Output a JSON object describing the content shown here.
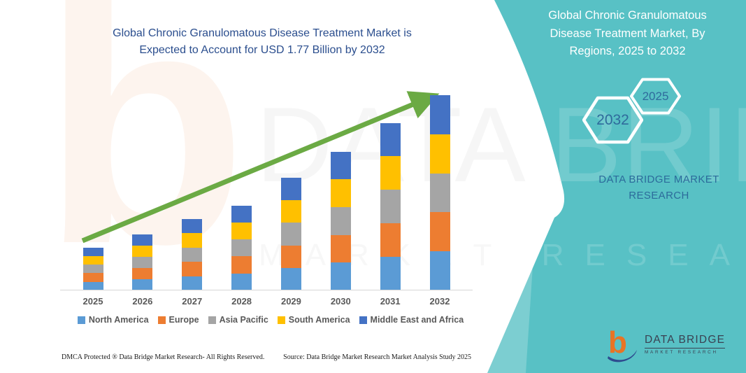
{
  "header": {
    "title": "Global Chronic Granulomatous Disease Treatment Market is\nExpected to Account for USD 1.77 Billion by 2032"
  },
  "side_panel": {
    "title": "Global Chronic Granulomatous\nDisease Treatment Market, By\nRegions, 2025 to 2032",
    "hexagons": [
      "2032",
      "2025"
    ],
    "brand_text": "DATA BRIDGE MARKET\nRESEARCH"
  },
  "chart_data": {
    "type": "bar",
    "stacked": true,
    "title": "Global Chronic Granulomatous Disease Treatment Market, By Regions, 2025 to 2032",
    "units": "USD Billion",
    "categories": [
      "2025",
      "2026",
      "2027",
      "2028",
      "2029",
      "2030",
      "2031",
      "2032"
    ],
    "totals": [
      0.39,
      0.51,
      0.65,
      0.77,
      1.02,
      1.26,
      1.52,
      1.77
    ],
    "series": [
      {
        "name": "North America",
        "color": "#5B9BD5",
        "values": [
          0.078,
          0.102,
          0.13,
          0.154,
          0.204,
          0.252,
          0.304,
          0.354
        ]
      },
      {
        "name": "Europe",
        "color": "#ED7D31",
        "values": [
          0.078,
          0.102,
          0.13,
          0.154,
          0.204,
          0.252,
          0.304,
          0.354
        ]
      },
      {
        "name": "Asia Pacific",
        "color": "#A5A5A5",
        "values": [
          0.078,
          0.102,
          0.13,
          0.154,
          0.204,
          0.252,
          0.304,
          0.354
        ]
      },
      {
        "name": "South America",
        "color": "#FFC000",
        "values": [
          0.078,
          0.102,
          0.13,
          0.154,
          0.204,
          0.252,
          0.304,
          0.354
        ]
      },
      {
        "name": "Middle East and Africa",
        "color": "#4472C4",
        "values": [
          0.078,
          0.102,
          0.13,
          0.154,
          0.204,
          0.252,
          0.304,
          0.354
        ]
      }
    ],
    "annotations": [
      "upward green trend arrow"
    ],
    "legend_position": "bottom",
    "grid": false,
    "y_axis_shown": false,
    "key_value": "USD 1.77 Billion by 2032"
  },
  "footer": {
    "left": "DMCA Protected ® Data Bridge Market Research-  All Rights Reserved.",
    "right": "Source: Data Bridge Market Research  Market Analysis Study 2025"
  },
  "logo": {
    "name": "DATA BRIDGE",
    "sub": "MARKET RESEARCH"
  },
  "watermark": {
    "logo_letter": "b",
    "big_text": "DATA BRIDGE",
    "sub_text": "MARKET RESEARCH"
  },
  "colors": {
    "teal_panel": "#58C1C5",
    "title_blue": "#2B4E8E",
    "panel_text_blue": "#2C6B9B",
    "hexagon_year_blue": "#2F6B9C",
    "arrow_green": "#6BAA44",
    "axis_label_gray": "#595959",
    "logo_orange": "#E87424",
    "logo_navy": "#2E4B8F"
  }
}
